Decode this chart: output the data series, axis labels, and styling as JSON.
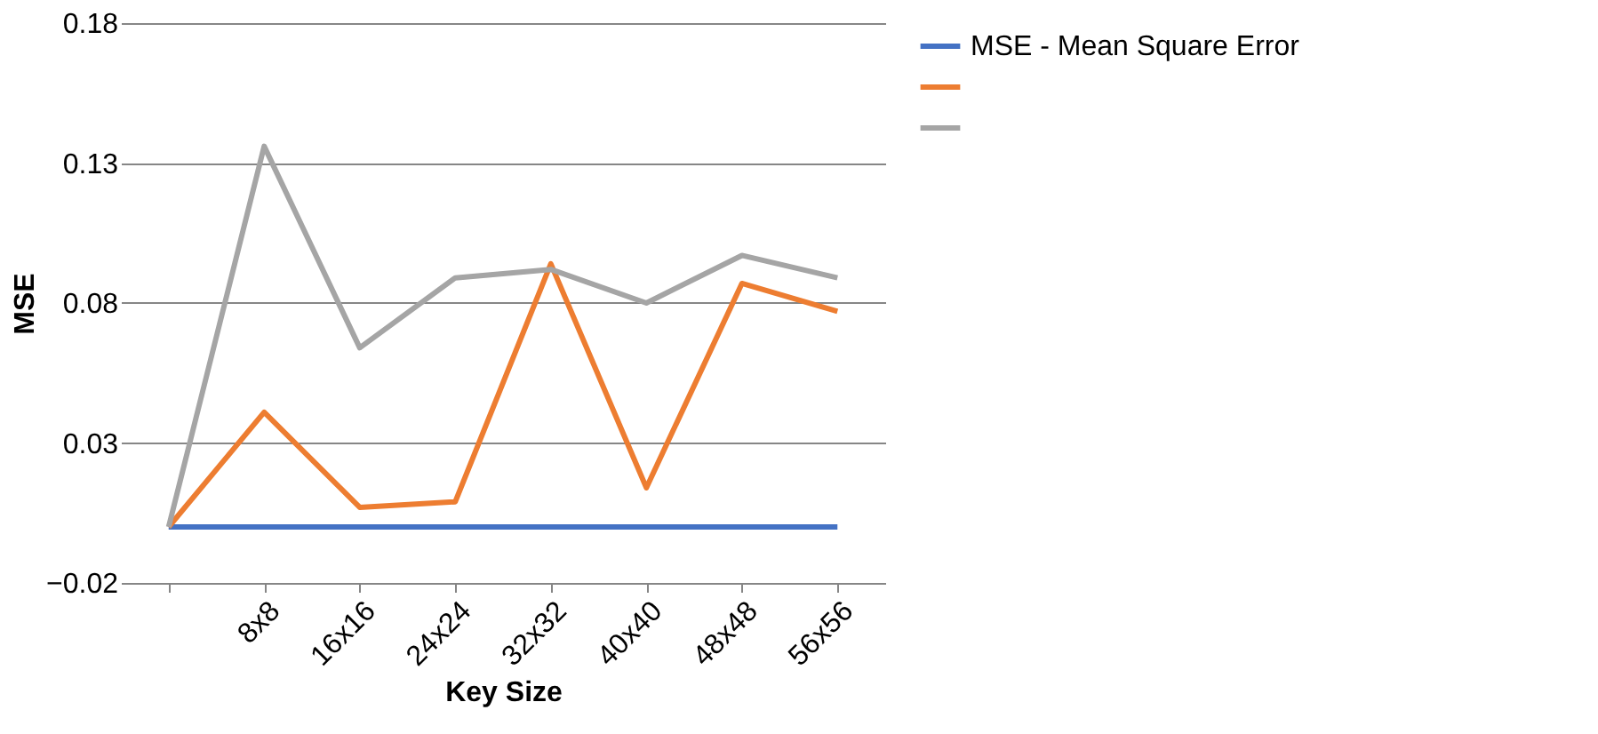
{
  "chart_data": {
    "type": "line",
    "xlabel": "Key Size",
    "ylabel": "MSE",
    "categories": [
      null,
      "8x8",
      "16x16",
      "24x24",
      "32x32",
      "40x40",
      "48x48",
      "56x56"
    ],
    "series": [
      {
        "name": "MSE  - Mean Square Error",
        "color": "#4472c4",
        "values": [
          0,
          0,
          0,
          0,
          0,
          0,
          0,
          0
        ]
      },
      {
        "color": "#ed7d31",
        "values": [
          0,
          0.041,
          0.007,
          0.009,
          0.094,
          0.014,
          0.087,
          0.077
        ]
      },
      {
        "color": "#a5a5a5",
        "values": [
          0,
          0.136,
          0.064,
          0.089,
          0.092,
          0.08,
          0.097,
          0.089
        ]
      }
    ],
    "ylim": [
      -0.02,
      0.18
    ],
    "yticks": [
      -0.02,
      0.03,
      0.08,
      0.13,
      0.18
    ],
    "grid": "y",
    "legend": "right",
    "marker": "none",
    "line_style": "solid"
  }
}
